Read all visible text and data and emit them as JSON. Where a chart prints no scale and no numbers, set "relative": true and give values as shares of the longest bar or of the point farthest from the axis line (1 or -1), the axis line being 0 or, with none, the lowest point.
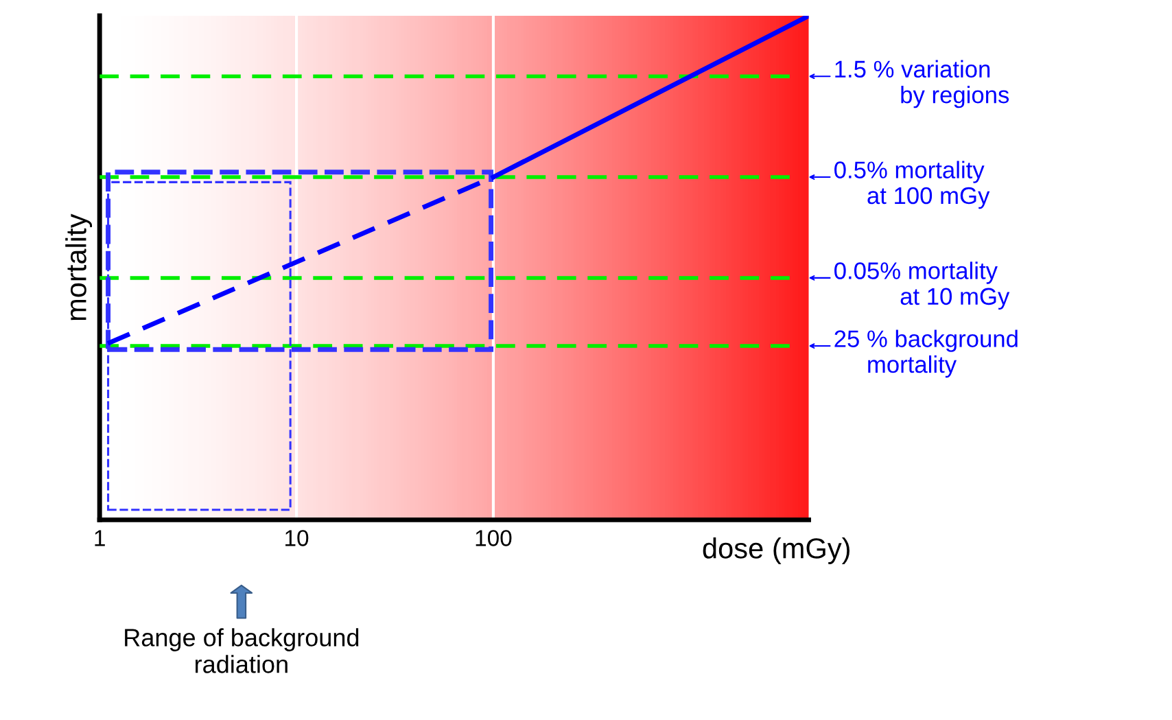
{
  "chart_data": {
    "type": "line",
    "relative": true,
    "xlabel": "dose (mGy)",
    "ylabel": "mortality",
    "log": "x",
    "xlim": [
      1,
      4000
    ],
    "xticks": [
      1,
      10,
      100
    ],
    "grid": "x",
    "tick_labels": "x",
    "series": [
      {
        "color": "#0000ff",
        "x": [
          1.1,
          100
        ],
        "values": [
          0.35,
          0.68
        ],
        "line_style": "dashed"
      },
      {
        "color": "#0000ff",
        "x": [
          100,
          4000
        ],
        "values": [
          0.68,
          1.0
        ],
        "line_style": "solid"
      }
    ],
    "ref_lines": [
      {
        "axis": "y",
        "value": 0.88,
        "label": "1.5 % variation\n          by regions",
        "color": "#00ee00",
        "line_style": "dashed"
      },
      {
        "axis": "y",
        "value": 0.68,
        "label": "0.5% mortality\n     at 100 mGy",
        "color": "#00ee00",
        "line_style": "dashed"
      },
      {
        "axis": "y",
        "value": 0.48,
        "label": "0.05% mortality\n          at 10 mGy",
        "color": "#00ee00",
        "line_style": "dashed"
      },
      {
        "axis": "y",
        "value": 0.345,
        "label": "25 % background\n     mortality",
        "color": "#00ee00",
        "line_style": "dashed"
      }
    ],
    "annotations": [
      "Range of background\nradiation"
    ]
  }
}
